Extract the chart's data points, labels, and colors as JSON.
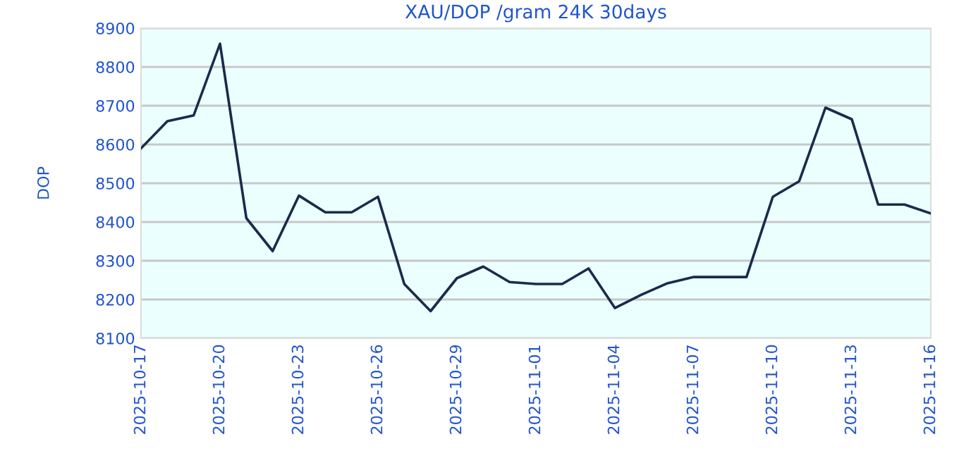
{
  "chart_data": {
    "type": "line",
    "title": "XAU/DOP /gram 24K 30days",
    "ylabel": "DOP",
    "x": [
      "2025-10-17",
      "2025-10-18",
      "2025-10-19",
      "2025-10-20",
      "2025-10-21",
      "2025-10-22",
      "2025-10-23",
      "2025-10-24",
      "2025-10-25",
      "2025-10-26",
      "2025-10-27",
      "2025-10-28",
      "2025-10-29",
      "2025-10-30",
      "2025-10-31",
      "2025-11-01",
      "2025-11-02",
      "2025-11-03",
      "2025-11-04",
      "2025-11-05",
      "2025-11-06",
      "2025-11-07",
      "2025-11-08",
      "2025-11-09",
      "2025-11-10",
      "2025-11-11",
      "2025-11-12",
      "2025-11-13",
      "2025-11-14",
      "2025-11-15",
      "2025-11-16"
    ],
    "series": [
      {
        "color": "#1a2b4c",
        "values": [
          8590,
          8660,
          8675,
          8860,
          8410,
          8325,
          8468,
          8425,
          8425,
          8465,
          8240,
          8170,
          8255,
          8285,
          8245,
          8240,
          8240,
          8280,
          8178,
          8212,
          8242,
          8258,
          8258,
          8258,
          8465,
          8505,
          8695,
          8665,
          8445,
          8445,
          8422
        ]
      }
    ],
    "xlim": [
      "2025-10-17",
      "2025-11-16"
    ],
    "xticks": [
      "2025-10-17",
      "2025-10-20",
      "2025-10-23",
      "2025-10-26",
      "2025-10-29",
      "2025-11-01",
      "2025-11-04",
      "2025-11-07",
      "2025-11-10",
      "2025-11-13",
      "2025-11-16"
    ],
    "ylim": [
      8100,
      8900
    ],
    "yticks": [
      8100,
      8200,
      8300,
      8400,
      8500,
      8600,
      8700,
      8800,
      8900
    ],
    "grid": "y",
    "marker": "none",
    "line_style": "solid"
  }
}
